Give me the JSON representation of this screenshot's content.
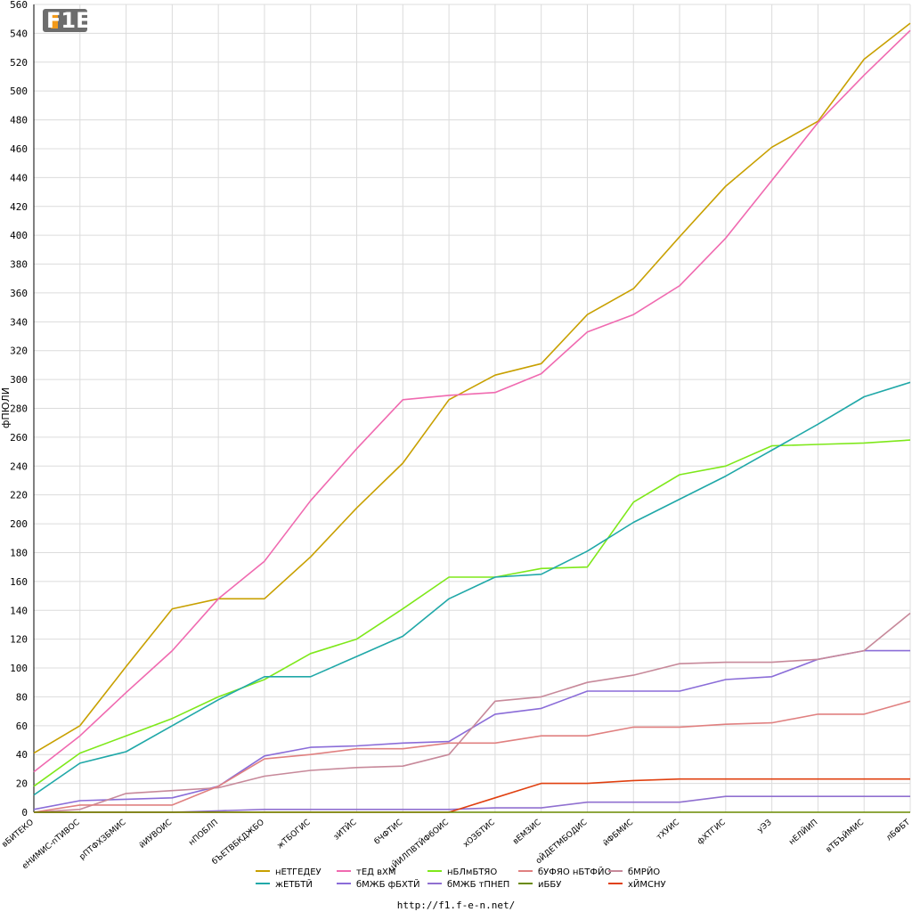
{
  "footer": {
    "url": "http://f1.f-e-n.net/"
  },
  "logo": {
    "text": "F1EN"
  },
  "chart_data": {
    "type": "line",
    "title": "",
    "xlabel": "",
    "ylabel": "фПЮЛИ",
    "ylim": [
      0,
      560
    ],
    "ytick_step": 20,
    "grid": true,
    "legend_position": "bottom-center",
    "categories": [
      "вБИТЕКО",
      "еНИМИС-пТИВОС",
      "рПТФХЗБМИС",
      "йИУВОИС",
      "нПОБЛП",
      "бЪЕТВБКДЖБО",
      "жТБОГИС",
      "зИТЙС",
      "бЧФТИС",
      "цЙИЛПВТЙФбОИС",
      "хОЗБТИС",
      "вЕМЗИС",
      "оЙДЕТМБОДИС",
      "йФБМИС",
      "тХУИС",
      "фХТГИС",
      "уЭЗ",
      "нЕЛЙИП",
      "вТБЪЙМИС",
      "лБФБТ"
    ],
    "series": [
      {
        "name": "нЕТГЕДЕУ",
        "color": "#c8a000",
        "values": [
          41,
          60,
          101,
          141,
          148,
          148,
          177,
          211,
          242,
          286,
          303,
          311,
          345,
          363,
          399,
          434,
          461,
          479,
          522,
          547
        ]
      },
      {
        "name": "тЕД вХМ",
        "color": "#f06ab0",
        "values": [
          28,
          53,
          83,
          112,
          148,
          174,
          216,
          252,
          286,
          289,
          291,
          304,
          333,
          345,
          365,
          398,
          438,
          478,
          511,
          542
        ]
      },
      {
        "name": "нБЛмБТЯО",
        "color": "#7ee81a",
        "values": [
          18,
          41,
          53,
          65,
          80,
          92,
          110,
          120,
          141,
          163,
          163,
          169,
          170,
          215,
          234,
          240,
          254,
          255,
          256,
          258
        ]
      },
      {
        "name": "жЕТБТЙ",
        "color": "#20a8a8",
        "values": [
          12,
          34,
          42,
          60,
          78,
          94,
          94,
          108,
          122,
          148,
          163,
          165,
          181,
          201,
          217,
          233,
          251,
          269,
          288,
          298
        ]
      },
      {
        "name": "бМЖБ фБХТЙ",
        "color": "#8a6cd8",
        "values": [
          2,
          8,
          9,
          10,
          18,
          39,
          45,
          46,
          48,
          49,
          68,
          72,
          84,
          84,
          84,
          92,
          94,
          106,
          112,
          112
        ]
      },
      {
        "name": "бМРЙО",
        "color": "#c7899a",
        "values": [
          0,
          2,
          13,
          15,
          17,
          25,
          29,
          31,
          32,
          40,
          77,
          80,
          90,
          95,
          103,
          104,
          104,
          106,
          112,
          138
        ]
      },
      {
        "name": "бУФЯО нБТФЙО",
        "color": "#e08080",
        "values": [
          0,
          5,
          5,
          5,
          18,
          37,
          40,
          44,
          44,
          48,
          48,
          53,
          53,
          59,
          59,
          61,
          62,
          68,
          68,
          77
        ]
      },
      {
        "name": "бМЖБ тПНЕП",
        "color": "#9070d0",
        "values": [
          0,
          0,
          0,
          0,
          1,
          2,
          2,
          2,
          2,
          2,
          3,
          3,
          7,
          7,
          7,
          11,
          11,
          11,
          11,
          11
        ]
      },
      {
        "name": "хЙМСНУ",
        "color": "#e04010",
        "values": [
          0,
          0,
          0,
          0,
          0,
          0,
          0,
          0,
          0,
          0,
          10,
          20,
          20,
          22,
          23,
          23,
          23,
          23,
          23,
          23
        ]
      },
      {
        "name": "иББУ",
        "color": "#6a8a00",
        "values": [
          0,
          0,
          0,
          0,
          0,
          0,
          0,
          0,
          0,
          0,
          0,
          0,
          0,
          0,
          0,
          0,
          0,
          0,
          0,
          0
        ]
      }
    ],
    "legend_rows": [
      [
        "нЕТГЕДЕУ",
        "тЕД вХМ",
        "нБЛмБТЯО",
        "бУФЯО нБТФЙО",
        "бМРЙО"
      ],
      [
        "жЕТБТЙ",
        "бМЖБ фБХТЙ",
        "бМЖБ тПНЕП",
        "иББУ",
        "хЙМСНУ"
      ]
    ]
  }
}
